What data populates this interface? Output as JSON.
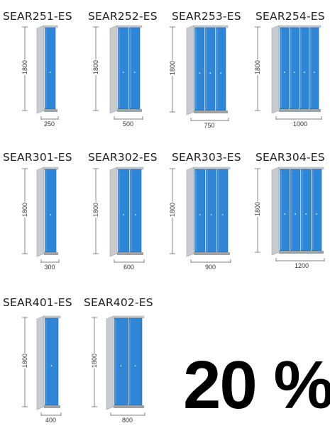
{
  "catalog": {
    "height_label": "1800",
    "models": [
      {
        "code": "SEAR251-ES",
        "doors": 1,
        "width": "250"
      },
      {
        "code": "SEAR252-ES",
        "doors": 2,
        "width": "500"
      },
      {
        "code": "SEAR253-ES",
        "doors": 3,
        "width": "750"
      },
      {
        "code": "SEAR254-ES",
        "doors": 4,
        "width": "1000"
      },
      {
        "code": "SEAR301-ES",
        "doors": 1,
        "width": "300"
      },
      {
        "code": "SEAR302-ES",
        "doors": 2,
        "width": "600"
      },
      {
        "code": "SEAR303-ES",
        "doors": 3,
        "width": "900"
      },
      {
        "code": "SEAR304-ES",
        "doors": 4,
        "width": "1200"
      },
      {
        "code": "SEAR401-ES",
        "doors": 1,
        "width": "400"
      },
      {
        "code": "SEAR402-ES",
        "doors": 2,
        "width": "800"
      }
    ]
  },
  "promo": {
    "text": "20 %"
  },
  "colors": {
    "door": "#2f86d6",
    "door_dark": "#1c64b0",
    "frame": "#c8cbcf",
    "frame_dark": "#9ea3a8"
  }
}
